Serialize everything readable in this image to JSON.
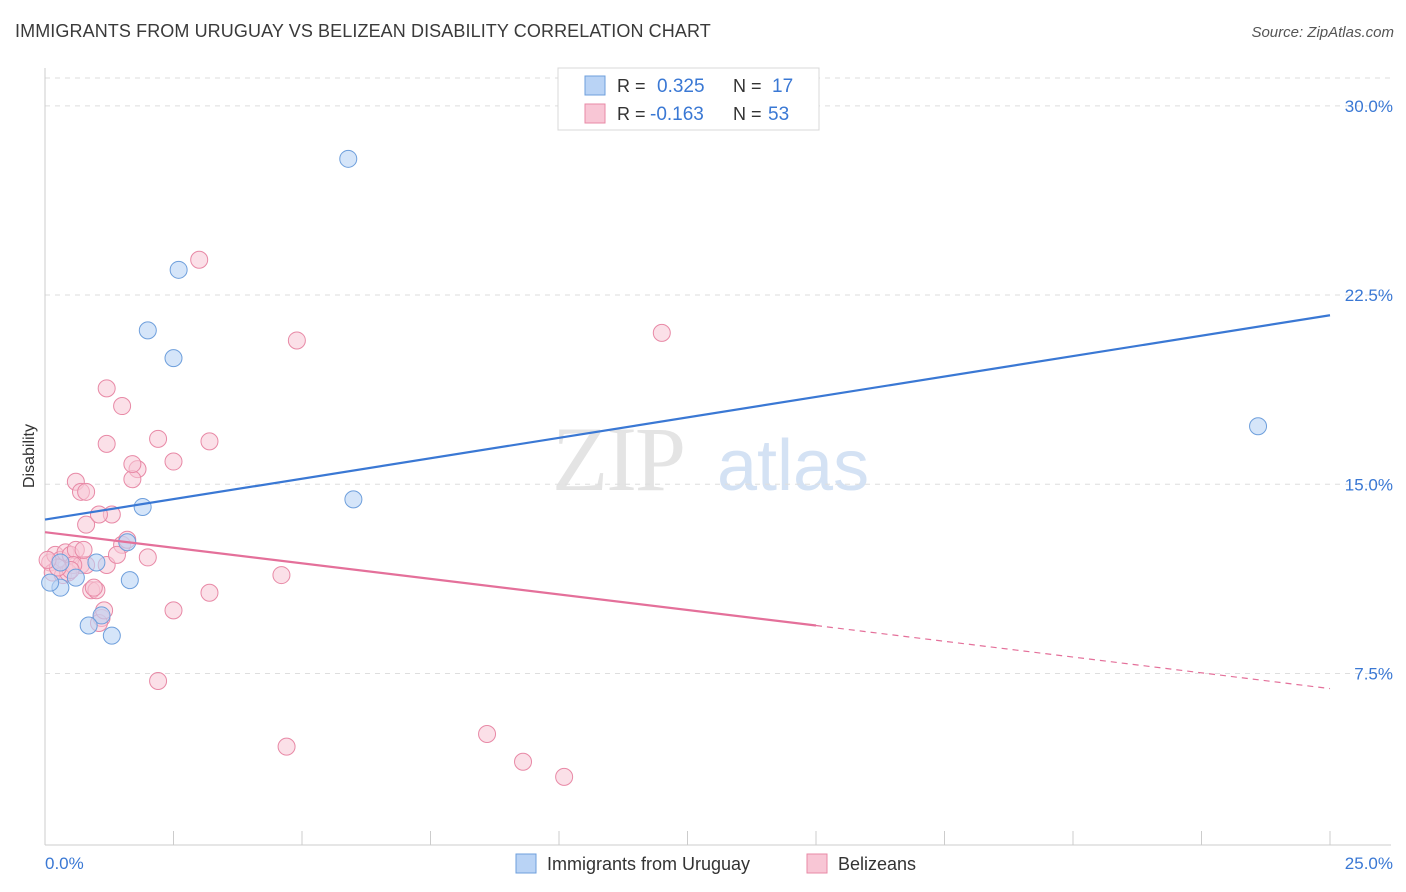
{
  "header": {
    "title": "IMMIGRANTS FROM URUGUAY VS BELIZEAN DISABILITY CORRELATION CHART",
    "source": "Source: ZipAtlas.com"
  },
  "watermark": {
    "part1": "ZIP",
    "part2": "atlas"
  },
  "legend_top": {
    "rows": [
      {
        "r_label": "R =",
        "r_value": "0.325",
        "n_label": "N =",
        "n_value": "17"
      },
      {
        "r_label": "R =",
        "r_value": "-0.163",
        "n_label": "N =",
        "n_value": "53"
      }
    ]
  },
  "legend_bottom": {
    "items": [
      "Immigrants from Uruguay",
      "Belizeans"
    ]
  },
  "colors": {
    "uruguay_fill": "#b9d3f5",
    "uruguay_stroke": "#6e9fdc",
    "uruguay_line": "#3a78d4",
    "belize_fill": "#f8c6d5",
    "belize_stroke": "#e889a6",
    "belize_line": "#e4709a",
    "value_text": "#3a78d4",
    "label_text": "#333333",
    "grid": "#dedede",
    "axis": "#cccccc"
  },
  "chart_data": {
    "type": "scatter",
    "title": "IMMIGRANTS FROM URUGUAY VS BELIZEAN DISABILITY CORRELATION CHART",
    "xlabel": "",
    "ylabel": "Disability",
    "xlim": [
      0,
      25
    ],
    "ylim": [
      0.7,
      31.5
    ],
    "x_tick_labels": [
      "0.0%",
      "25.0%"
    ],
    "y_ticks": [
      7.5,
      15.0,
      22.5,
      30.0
    ],
    "y_tick_labels": [
      "7.5%",
      "15.0%",
      "22.5%",
      "30.0%"
    ],
    "grid": true,
    "legend_position": "top-center",
    "series": [
      {
        "name": "Immigrants from Uruguay",
        "color": "#6e9fdc",
        "x": [
          5.9,
          2.6,
          2.0,
          2.5,
          6.0,
          1.9,
          1.6,
          1.0,
          0.6,
          0.3,
          0.3,
          1.3,
          1.1,
          0.85,
          1.65,
          23.6,
          0.1
        ],
        "y": [
          27.9,
          23.5,
          21.1,
          20.0,
          14.4,
          14.1,
          12.7,
          11.9,
          11.3,
          10.9,
          11.9,
          9.0,
          9.8,
          9.4,
          11.2,
          17.3,
          11.1
        ],
        "trend": {
          "x": [
            0,
            25
          ],
          "y": [
            13.6,
            21.7
          ]
        }
      },
      {
        "name": "Belizeans",
        "color": "#e889a6",
        "x": [
          3.0,
          4.9,
          12.0,
          1.2,
          1.5,
          1.2,
          2.2,
          3.2,
          1.8,
          2.5,
          1.7,
          1.7,
          0.6,
          0.7,
          0.8,
          1.3,
          0.8,
          1.5,
          1.6,
          0.1,
          0.2,
          0.3,
          0.4,
          0.5,
          0.6,
          0.7,
          0.8,
          0.9,
          1.0,
          1.1,
          1.2,
          1.4,
          2.0,
          0.15,
          0.35,
          0.45,
          0.55,
          0.75,
          0.95,
          1.05,
          1.15,
          4.6,
          3.2,
          2.5,
          0.5,
          0.25,
          1.05,
          2.2,
          4.7,
          8.6,
          9.3,
          10.1,
          0.05
        ],
        "y": [
          23.9,
          20.7,
          21.0,
          18.8,
          18.1,
          16.6,
          16.8,
          16.7,
          15.6,
          15.9,
          15.2,
          15.8,
          15.1,
          14.7,
          14.7,
          13.8,
          13.4,
          12.6,
          12.8,
          11.9,
          12.2,
          12.0,
          12.3,
          12.2,
          12.4,
          11.8,
          11.8,
          10.8,
          10.8,
          9.7,
          11.8,
          12.2,
          12.1,
          11.5,
          11.4,
          11.5,
          11.8,
          12.4,
          10.9,
          9.5,
          10.0,
          11.4,
          10.7,
          10.0,
          11.6,
          11.7,
          13.8,
          7.2,
          4.6,
          5.1,
          4.0,
          3.4,
          12.0
        ],
        "trend_solid": {
          "x": [
            0,
            15
          ],
          "y": [
            13.1,
            9.4
          ]
        },
        "trend_dashed": {
          "x": [
            15,
            25
          ],
          "y": [
            9.4,
            6.9
          ]
        }
      }
    ]
  }
}
